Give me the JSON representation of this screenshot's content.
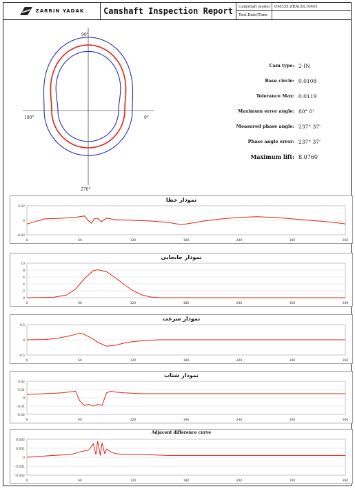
{
  "header": {
    "logo_text": "ZARRIN YADAK",
    "title": "Camshaft Inspection Report",
    "camshaft_model_label": "Camshaft model",
    "camshaft_model_value": "OM355 ZRAC0L10401",
    "test_date_label": "Test Date/Time",
    "test_date_value": ""
  },
  "polar": {
    "label_top": "90°",
    "label_left": "180°",
    "label_right": "0°",
    "label_bottom": "270°"
  },
  "info": [
    {
      "label": "Cam type:",
      "value": "2-IN"
    },
    {
      "label": "Base circle:",
      "value": "0.0108"
    },
    {
      "label": "Tolerance Max:",
      "value": "0.0119"
    },
    {
      "label": "Maximum error angle:",
      "value": "80° 0'"
    },
    {
      "label": "Measured phase angle:",
      "value": "237° 37'"
    },
    {
      "label": "Phase angle error:",
      "value": "237° 37'"
    },
    {
      "label": "Maximum lift:",
      "value": "8.0760"
    }
  ],
  "colors": {
    "curve": "#e02010",
    "tolerance": "#2a2ac0",
    "grid": "#cccccc"
  },
  "chart_data": [
    {
      "type": "line",
      "title": "نمودار خطا",
      "x_ticks": [
        "0",
        "60",
        "120",
        "180",
        "240",
        "300",
        "360"
      ],
      "y_ticks": [
        "0.02",
        "0",
        "-0.02"
      ],
      "ylim": [
        -0.02,
        0.02
      ],
      "x": [
        0,
        20,
        40,
        55,
        65,
        70,
        73,
        76,
        80,
        84,
        90,
        100,
        120,
        140,
        160,
        175,
        185,
        200,
        220,
        240,
        260,
        280,
        300,
        320,
        340,
        355,
        360
      ],
      "y": [
        -0.005,
        0.002,
        0.003,
        0.004,
        0.006,
        -0.001,
        -0.004,
        0.002,
        0.003,
        -0.002,
        0.003,
        0.001,
        0.0,
        -0.001,
        -0.003,
        -0.006,
        -0.004,
        -0.001,
        0.002,
        0.004,
        0.005,
        0.004,
        0.002,
        0.0,
        -0.002,
        -0.004,
        -0.005
      ]
    },
    {
      "type": "line",
      "title": "نمودار جابجایی",
      "x_ticks": [
        "0",
        "60",
        "120",
        "180",
        "240",
        "300",
        "360"
      ],
      "y_ticks": [
        "10",
        "8",
        "6",
        "4",
        "2",
        "0"
      ],
      "ylim": [
        0,
        10
      ],
      "x": [
        0,
        30,
        45,
        55,
        65,
        75,
        80,
        90,
        100,
        110,
        120,
        130,
        140,
        150,
        170,
        200,
        240,
        300,
        360
      ],
      "y": [
        0,
        0.1,
        0.8,
        2.5,
        5.5,
        7.8,
        8.1,
        7.5,
        5.8,
        3.8,
        2.0,
        0.8,
        0.2,
        0,
        0,
        0,
        0,
        0,
        0
      ]
    },
    {
      "type": "line",
      "title": "نمودار سرعت",
      "x_ticks": [
        "0",
        "60",
        "120",
        "180",
        "240",
        "300",
        "360"
      ],
      "y_ticks": [
        "0.5",
        "0",
        "-0.5"
      ],
      "ylim": [
        -0.5,
        0.5
      ],
      "x": [
        0,
        20,
        35,
        50,
        60,
        65,
        75,
        80,
        90,
        100,
        110,
        120,
        135,
        150,
        180,
        240,
        300,
        360
      ],
      "y": [
        0,
        0.01,
        0.05,
        0.14,
        0.22,
        0.18,
        0.02,
        -0.08,
        -0.21,
        -0.18,
        -0.11,
        -0.06,
        -0.02,
        0,
        0,
        0,
        0,
        0
      ]
    },
    {
      "type": "line",
      "title": "نمودار شتاب",
      "x_ticks": [
        "0",
        "60",
        "120",
        "180",
        "240",
        "300",
        "360"
      ],
      "y_ticks": [
        "0.02",
        "0.01",
        "0",
        "-0.01",
        "-0.02"
      ],
      "ylim": [
        -0.02,
        0.02
      ],
      "x": [
        0,
        20,
        40,
        55,
        60,
        65,
        70,
        75,
        80,
        85,
        90,
        95,
        100,
        110,
        130,
        160,
        200,
        240,
        280,
        320,
        360
      ],
      "y": [
        0.004,
        0.005,
        0.006,
        0.008,
        -0.004,
        -0.009,
        -0.008,
        -0.01,
        -0.008,
        -0.009,
        0.006,
        0.008,
        0.007,
        0.006,
        0.005,
        0.005,
        0.005,
        0.005,
        0.005,
        0.005,
        0.005
      ]
    },
    {
      "type": "line",
      "title": "Adjacent difference curve",
      "x_ticks": [
        "0",
        "60",
        "120",
        "180",
        "240",
        "300",
        "360"
      ],
      "y_ticks": [
        "0.002",
        "0.001",
        "0",
        "-0.001",
        "-0.002"
      ],
      "ylim": [
        -0.002,
        0.002
      ],
      "x": [
        0,
        30,
        50,
        60,
        70,
        75,
        78,
        80,
        83,
        85,
        88,
        90,
        95,
        100,
        110,
        130,
        160,
        200,
        250,
        300,
        360
      ],
      "y": [
        0,
        0.0002,
        0.0003,
        0.0006,
        0.0008,
        0.0015,
        0.0003,
        0.0018,
        0.0002,
        0.0016,
        0.0004,
        0.0009,
        0.0006,
        0.0004,
        0.0003,
        0.0003,
        0.0002,
        0.0002,
        0.0002,
        0.0002,
        0.0002
      ]
    }
  ]
}
